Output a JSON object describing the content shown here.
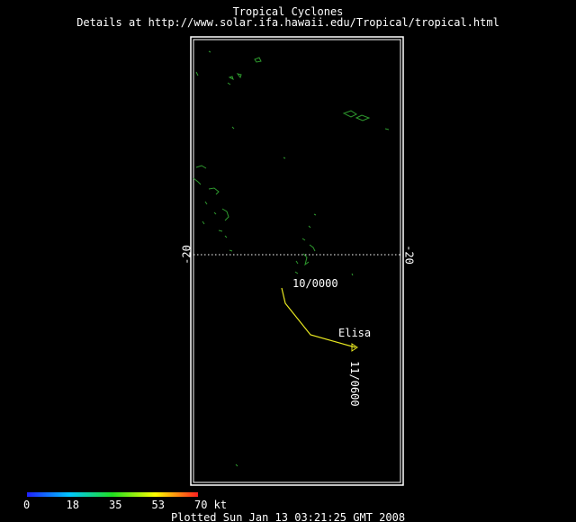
{
  "header": {
    "title": "Tropical Cyclones",
    "subtitle": "Details at http://www.solar.ifa.hawaii.edu/Tropical/tropical.html"
  },
  "map": {
    "latitude_label_left": "-20",
    "latitude_label_right": "-20",
    "storm": {
      "name": "Elisa",
      "start_label": "10/0000",
      "end_label": "11/0600"
    }
  },
  "colorbar": {
    "labels": [
      "0",
      "18",
      "35",
      "53",
      "70 kt"
    ]
  },
  "footer": {
    "plotted": "Plotted Sun Jan 13 03:21:25 GMT 2008"
  }
}
